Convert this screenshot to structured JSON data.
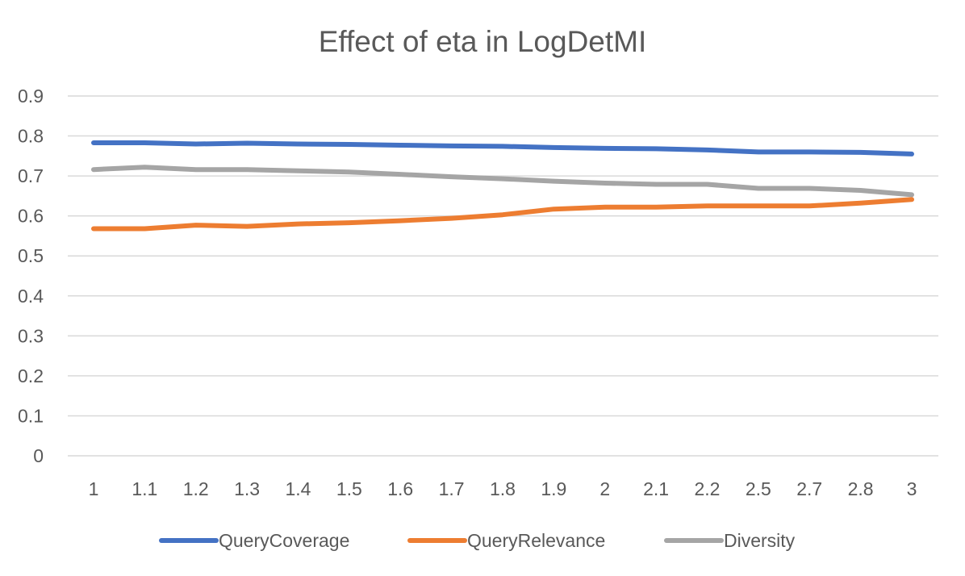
{
  "chart_data": {
    "type": "line",
    "title": "Effect of eta in LogDetMI",
    "xlabel": "",
    "ylabel": "",
    "categories": [
      "1",
      "1.1",
      "1.2",
      "1.3",
      "1.4",
      "1.5",
      "1.6",
      "1.7",
      "1.8",
      "1.9",
      "2",
      "2.1",
      "2.2",
      "2.5",
      "2.7",
      "2.8",
      "3"
    ],
    "ylim": [
      0,
      0.9
    ],
    "yticks": [
      0,
      0.1,
      0.2,
      0.3,
      0.4,
      0.5,
      0.6,
      0.7,
      0.8,
      0.9
    ],
    "ytick_labels": [
      "0",
      "0.1",
      "0.2",
      "0.3",
      "0.4",
      "0.5",
      "0.6",
      "0.7",
      "0.8",
      "0.9"
    ],
    "grid": true,
    "legend_position": "bottom",
    "series": [
      {
        "name": "QueryCoverage",
        "color": "#4472C4",
        "values": [
          0.783,
          0.783,
          0.78,
          0.782,
          0.78,
          0.779,
          0.777,
          0.775,
          0.774,
          0.771,
          0.769,
          0.768,
          0.765,
          0.76,
          0.76,
          0.759,
          0.755
        ]
      },
      {
        "name": "QueryRelevance",
        "color": "#ED7D31",
        "values": [
          0.568,
          0.568,
          0.577,
          0.574,
          0.58,
          0.583,
          0.588,
          0.594,
          0.603,
          0.617,
          0.622,
          0.622,
          0.625,
          0.625,
          0.625,
          0.632,
          0.641
        ]
      },
      {
        "name": "Diversity",
        "color": "#A5A5A5",
        "values": [
          0.716,
          0.722,
          0.716,
          0.716,
          0.713,
          0.71,
          0.704,
          0.698,
          0.693,
          0.687,
          0.682,
          0.679,
          0.679,
          0.669,
          0.669,
          0.664,
          0.653
        ]
      }
    ]
  }
}
